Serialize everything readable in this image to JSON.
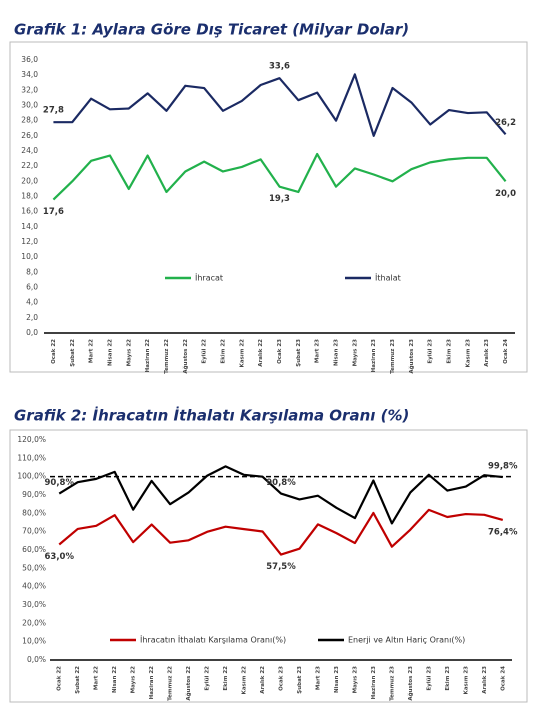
{
  "chart_data": [
    {
      "type": "line",
      "title": "Grafik 1: Aylara Göre Dış Ticaret (Milyar Dolar)",
      "categories": [
        "Ocak 22",
        "Şubat 22",
        "Mart 22",
        "Nisan 22",
        "Mayıs 22",
        "Haziran 22",
        "Temmuz 22",
        "Ağustos 22",
        "Eylül 22",
        "Ekim 22",
        "Kasım 22",
        "Aralık 22",
        "Ocak 23",
        "Şubat 23",
        "Mart 23",
        "Nisan 23",
        "Mayıs 23",
        "Haziran 23",
        "Temmuz 23",
        "Ağustos 23",
        "Eylül 23",
        "Ekim 23",
        "Kasım 23",
        "Aralık 23",
        "Ocak 24"
      ],
      "series": [
        {
          "name": "İhracat",
          "color": "#22b14c",
          "values": [
            17.6,
            20.0,
            22.7,
            23.4,
            19.0,
            23.4,
            18.6,
            21.3,
            22.6,
            21.3,
            21.9,
            22.9,
            19.3,
            18.6,
            23.6,
            19.3,
            21.7,
            20.9,
            20.0,
            21.6,
            22.5,
            22.9,
            23.1,
            23.1,
            20.0
          ],
          "value_labels": [
            "17,6",
            null,
            null,
            null,
            null,
            null,
            null,
            null,
            null,
            null,
            null,
            null,
            "19,3",
            null,
            null,
            null,
            null,
            null,
            null,
            null,
            null,
            null,
            null,
            null,
            "20,0"
          ]
        },
        {
          "name": "İthalat",
          "color": "#1b2a63",
          "values": [
            27.8,
            27.8,
            30.9,
            29.5,
            29.6,
            31.6,
            29.3,
            32.6,
            32.3,
            29.3,
            30.6,
            32.7,
            33.6,
            30.7,
            31.7,
            28.0,
            34.1,
            26.0,
            32.3,
            30.4,
            27.5,
            29.4,
            29.0,
            29.1,
            26.2
          ],
          "value_labels": [
            "27,8",
            null,
            null,
            null,
            null,
            null,
            null,
            null,
            null,
            null,
            null,
            null,
            "33,6",
            null,
            null,
            null,
            null,
            null,
            null,
            null,
            null,
            null,
            null,
            null,
            "26,2"
          ]
        }
      ],
      "ylim": [
        0,
        36
      ],
      "yticks": [
        {
          "value": 0,
          "label": "0,0"
        },
        {
          "value": 2,
          "label": "2,0"
        },
        {
          "value": 4,
          "label": "4,0"
        },
        {
          "value": 6,
          "label": "6,0"
        },
        {
          "value": 8,
          "label": "8,0"
        },
        {
          "value": 10,
          "label": "10,0"
        },
        {
          "value": 12,
          "label": "12,0"
        },
        {
          "value": 14,
          "label": "14,0"
        },
        {
          "value": 16,
          "label": "16,0"
        },
        {
          "value": 18,
          "label": "18,0"
        },
        {
          "value": 20,
          "label": "20,0"
        },
        {
          "value": 22,
          "label": "22,0"
        },
        {
          "value": 24,
          "label": "24,0"
        },
        {
          "value": 26,
          "label": "26,0"
        },
        {
          "value": 28,
          "label": "28,0"
        },
        {
          "value": 30,
          "label": "30,0"
        },
        {
          "value": 32,
          "label": "32,0"
        },
        {
          "value": 34,
          "label": "34,0"
        },
        {
          "value": 36,
          "label": "36,0"
        }
      ],
      "grid": false
    },
    {
      "type": "line",
      "title": "Grafik 2: İhracatın İthalatı Karşılama Oranı (%)",
      "categories": [
        "Ocak 22",
        "Şubat 22",
        "Mart 22",
        "Nisan 22",
        "Mayıs 22",
        "Haziran 22",
        "Temmuz 22",
        "Ağustos 22",
        "Eylül 22",
        "Ekim 22",
        "Kasım 22",
        "Aralık 22",
        "Ocak 23",
        "Şubat 23",
        "Mart 23",
        "Nisan 23",
        "Mayıs 23",
        "Haziran 23",
        "Temmuz 23",
        "Ağustos 23",
        "Eylül 23",
        "Ekim 23",
        "Kasım 23",
        "Aralık 23",
        "Ocak 24"
      ],
      "series": [
        {
          "name": "İhracatın İthalatı Karşılama  Oranı(%)",
          "color": "#c00000",
          "values": [
            63.0,
            71.5,
            73.2,
            79.0,
            64.3,
            73.9,
            64.0,
            65.3,
            69.9,
            72.7,
            71.4,
            70.1,
            57.5,
            60.7,
            74.0,
            69.2,
            63.8,
            80.2,
            61.8,
            71.1,
            81.9,
            78.0,
            79.6,
            79.2,
            76.4
          ],
          "value_labels": [
            "63,0%",
            null,
            null,
            null,
            null,
            null,
            null,
            null,
            null,
            null,
            null,
            null,
            "57,5%",
            null,
            null,
            null,
            null,
            null,
            null,
            null,
            null,
            null,
            null,
            null,
            "76,4%"
          ]
        },
        {
          "name": "Enerji ve Altın Hariç  Oranı(%)",
          "color": "#000000",
          "values": [
            90.8,
            97.0,
            98.8,
            102.6,
            82.0,
            97.7,
            85.0,
            91.4,
            100.5,
            105.6,
            101.0,
            100.0,
            90.8,
            87.6,
            89.6,
            83.0,
            77.4,
            97.9,
            74.5,
            91.4,
            101.0,
            92.4,
            94.6,
            100.8,
            99.8
          ],
          "value_labels": [
            "90,8%",
            null,
            null,
            null,
            null,
            null,
            null,
            null,
            null,
            null,
            null,
            null,
            "90,8%",
            null,
            null,
            null,
            null,
            null,
            null,
            null,
            null,
            null,
            null,
            null,
            "99,8%"
          ]
        }
      ],
      "reference_line": 100,
      "ylim": [
        0,
        120
      ],
      "yticks": [
        {
          "value": 0,
          "label": "0,0%"
        },
        {
          "value": 10,
          "label": "10,0%"
        },
        {
          "value": 20,
          "label": "20,0%"
        },
        {
          "value": 30,
          "label": "30,0%"
        },
        {
          "value": 40,
          "label": "40,0%"
        },
        {
          "value": 50,
          "label": "50,0%"
        },
        {
          "value": 60,
          "label": "60,0%"
        },
        {
          "value": 70,
          "label": "70,0%"
        },
        {
          "value": 80,
          "label": "80,0%"
        },
        {
          "value": 90,
          "label": "90,0%"
        },
        {
          "value": 100,
          "label": "100,0%"
        },
        {
          "value": 110,
          "label": "110,0%"
        },
        {
          "value": 120,
          "label": "120,0%"
        }
      ],
      "grid": false
    }
  ]
}
